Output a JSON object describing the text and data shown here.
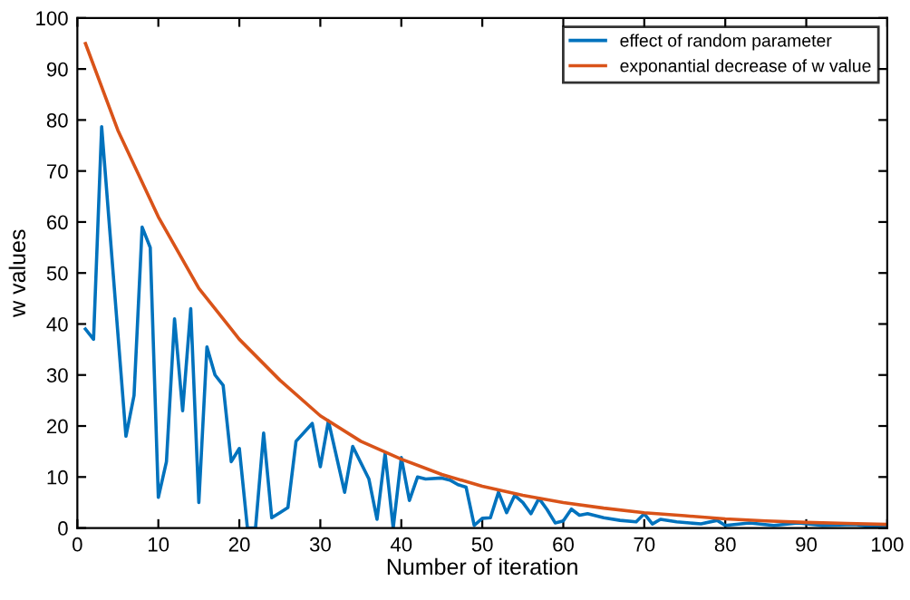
{
  "chart_data": {
    "type": "line",
    "xlabel": "Number of iteration",
    "ylabel": "w values",
    "xlim": [
      0,
      100
    ],
    "ylim": [
      0,
      100
    ],
    "xticks": [
      0,
      10,
      20,
      30,
      40,
      50,
      60,
      70,
      80,
      90,
      100
    ],
    "yticks": [
      0,
      10,
      20,
      30,
      40,
      50,
      60,
      70,
      80,
      90,
      100
    ],
    "grid": false,
    "legend": "top right",
    "marker": "none",
    "line_style": "solid",
    "series": [
      {
        "name": "effect of random parameter",
        "color": "#0072bd",
        "x": [
          1,
          2,
          3,
          6,
          7,
          8,
          9,
          10,
          11,
          12,
          13,
          14,
          15,
          16,
          17,
          18,
          19,
          20,
          21,
          22,
          23,
          24,
          25,
          26,
          27,
          29,
          30,
          31,
          33,
          34,
          36,
          37,
          38,
          39,
          40,
          41,
          42,
          43,
          45,
          46,
          47,
          48,
          49,
          50,
          51,
          52,
          53,
          54,
          55,
          56,
          57,
          58,
          59,
          60,
          61,
          62,
          63,
          65,
          67,
          69,
          70,
          71,
          72,
          74,
          77,
          79,
          80,
          83,
          86,
          89,
          92,
          96,
          98,
          100
        ],
        "values": [
          39,
          37,
          78.7,
          18,
          26,
          59,
          55,
          6,
          13,
          41,
          23,
          43,
          5,
          35.5,
          30,
          28,
          13,
          15.6,
          0,
          0,
          18.6,
          2,
          3,
          4,
          17,
          20.5,
          12,
          21,
          7,
          16,
          9.6,
          1.7,
          14.6,
          0,
          13.8,
          5.4,
          10,
          9.6,
          9.8,
          9.4,
          8.5,
          8,
          0.5,
          1.9,
          2,
          7,
          3,
          6.4,
          5,
          2.8,
          5.8,
          3.6,
          1,
          1.4,
          3.7,
          2.5,
          2.8,
          2,
          1.5,
          1.2,
          2.8,
          0.8,
          1.7,
          1.2,
          0.8,
          1.5,
          0.5,
          1,
          0.5,
          1,
          0.5,
          0.7,
          0.3,
          0.5
        ]
      },
      {
        "name": "exponantial decrease of w value",
        "color": "#d95319",
        "x": [
          1,
          5,
          10,
          15,
          20,
          25,
          30,
          35,
          40,
          45,
          50,
          55,
          60,
          65,
          70,
          75,
          80,
          85,
          90,
          95,
          100
        ],
        "values": [
          95,
          78,
          61,
          47,
          37,
          29,
          22,
          17,
          13.5,
          10.5,
          8.2,
          6.4,
          5,
          3.9,
          3,
          2.4,
          1.8,
          1.4,
          1.1,
          0.9,
          0.7
        ]
      }
    ]
  }
}
